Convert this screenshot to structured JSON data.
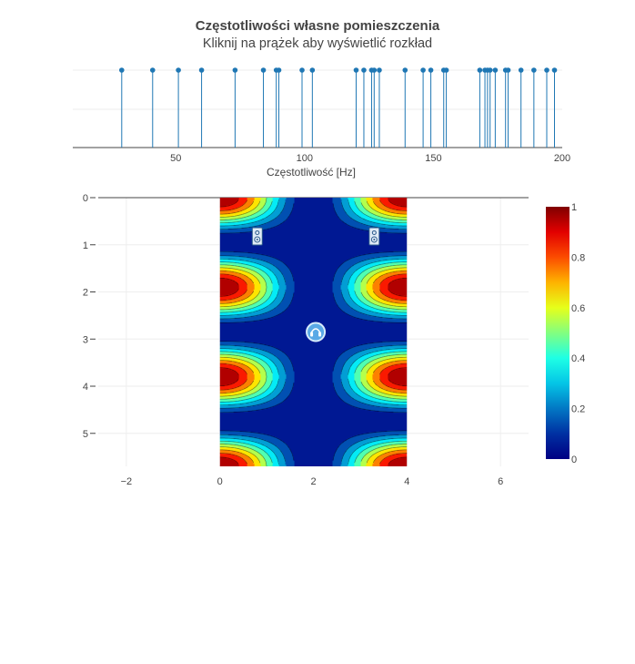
{
  "title": "Częstotliwości własne pomieszczenia",
  "subtitle": "Kliknij na prążek aby wyświetlić rozkład",
  "chart_data": [
    {
      "type": "stem",
      "xlabel": "Częstotliwość [Hz]",
      "xlim": [
        10,
        200
      ],
      "xticks": [
        50,
        100,
        150,
        200
      ],
      "color": "#1f77b4",
      "frequencies": [
        29,
        41,
        51,
        60,
        73,
        84,
        89,
        90,
        99,
        103,
        120,
        123,
        126,
        127,
        129,
        139,
        146,
        149,
        154,
        155,
        168,
        170,
        171,
        172,
        174,
        178,
        179,
        184,
        189,
        194,
        197
      ]
    },
    {
      "type": "heatmap",
      "xlim": [
        -2.6,
        6.6
      ],
      "ylim": [
        0,
        5.7
      ],
      "xticks": [
        -2,
        0,
        2,
        4,
        6
      ],
      "yticks": [
        0,
        1,
        2,
        3,
        4,
        5
      ],
      "room": {
        "x": [
          0,
          4
        ],
        "y": [
          0,
          5.7
        ]
      },
      "mode": {
        "nx": 1,
        "ny": 3
      },
      "colorscale": "jet",
      "zrange": [
        0,
        1
      ],
      "colorbar_ticks": [
        0,
        0.2,
        0.4,
        0.6,
        0.8,
        1
      ],
      "colorbar_tick_labels": [
        "0",
        "0.2",
        "0.4",
        "0.6",
        "0.8",
        "1"
      ],
      "speakers": [
        {
          "x": 0.8,
          "y": 0.82
        },
        {
          "x": 3.3,
          "y": 0.82
        }
      ],
      "listener": {
        "x": 2.05,
        "y": 2.85
      }
    }
  ]
}
